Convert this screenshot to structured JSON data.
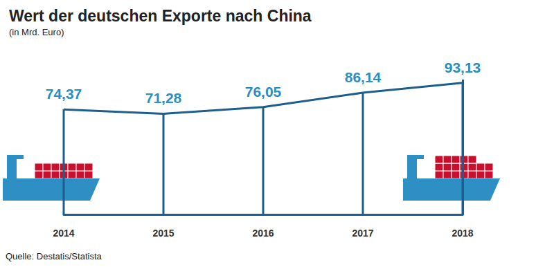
{
  "chart_data": {
    "type": "line",
    "title": "Wert der deutschen Exporte nach China",
    "subtitle": "(in Mrd. Euro)",
    "source": "Quelle: Destatis/Statista",
    "categories": [
      "2014",
      "2015",
      "2016",
      "2017",
      "2018"
    ],
    "values": [
      74.37,
      71.28,
      76.05,
      86.14,
      93.13
    ],
    "value_labels": [
      "74,37",
      "71,28",
      "76,05",
      "86,14",
      "93,13"
    ],
    "color": "#1d5f8c",
    "ylim": [
      0,
      95
    ],
    "grid": false,
    "data_labels": true,
    "tick_labels": "x"
  }
}
